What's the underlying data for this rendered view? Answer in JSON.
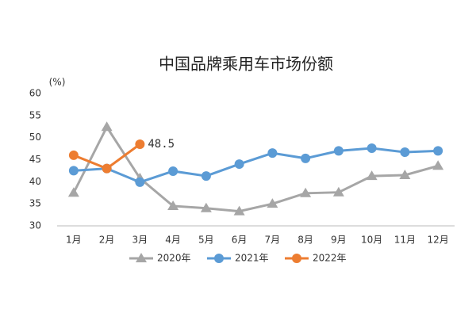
{
  "chart_data": {
    "type": "line",
    "title": "中国品牌乘用车市场份额",
    "y_label": "(%)",
    "categories": [
      "1月",
      "2月",
      "3月",
      "4月",
      "5月",
      "6月",
      "7月",
      "8月",
      "9月",
      "10月",
      "11月",
      "12月"
    ],
    "series": [
      {
        "name": "2020年",
        "color": "#a6a6a6",
        "marker": "triangle",
        "values": [
          37.5,
          52.4,
          40.8,
          34.5,
          34,
          33.3,
          35,
          37.4,
          37.6,
          41.3,
          41.5,
          43.6
        ]
      },
      {
        "name": "2021年",
        "color": "#5b9bd5",
        "marker": "circle",
        "values": [
          42.5,
          43,
          39.9,
          42.4,
          41.3,
          44,
          46.5,
          45.3,
          47,
          47.6,
          46.7,
          47
        ]
      },
      {
        "name": "2022年",
        "color": "#ed7d31",
        "marker": "circle",
        "show_value_label": true,
        "values": [
          46,
          43,
          48.5,
          null,
          null,
          null,
          null,
          null,
          null,
          null,
          null,
          null
        ]
      }
    ],
    "ylim": [
      30,
      60
    ],
    "yticks": [
      30,
      35,
      40,
      45,
      50,
      55,
      60
    ],
    "grid": false,
    "legend": "bottom"
  }
}
